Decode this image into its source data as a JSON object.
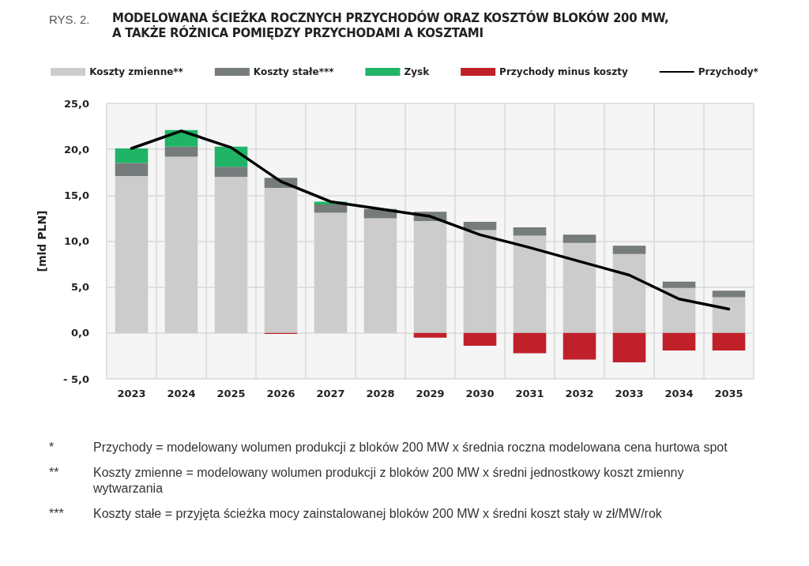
{
  "chart_data": {
    "type": "bar",
    "subtitle": "RYS. 2.",
    "title": "MODELOWANA ŚCIEŻKA ROCZNYCH PRZYCHODÓW ORAZ KOSZTÓW BLOKÓW 200 MW,\nA TAKŻE RÓŻNICA POMIĘDZY PRZYCHODAMI A KOSZTAMI",
    "ylabel": "[mld PLN]",
    "categories": [
      "2023",
      "2024",
      "2025",
      "2026",
      "2027",
      "2028",
      "2029",
      "2030",
      "2031",
      "2032",
      "2033",
      "2034",
      "2035"
    ],
    "stacked": true,
    "series": [
      {
        "name": "Koszty zmienne**",
        "color": "#cccccc",
        "values": [
          17.1,
          19.2,
          17.0,
          15.8,
          13.1,
          12.5,
          12.2,
          11.2,
          10.6,
          9.8,
          8.6,
          4.9,
          3.9
        ]
      },
      {
        "name": "Koszty stałe***",
        "color": "#767b7b",
        "values": [
          1.4,
          1.1,
          1.1,
          1.1,
          0.9,
          1.0,
          1.0,
          0.9,
          0.9,
          0.9,
          0.9,
          0.7,
          0.7
        ]
      },
      {
        "name": "Zysk",
        "color": "#1fb466",
        "values": [
          1.6,
          1.8,
          2.2,
          null,
          0.3,
          null,
          null,
          null,
          null,
          null,
          null,
          null,
          null
        ]
      },
      {
        "name": "Przychody minus koszty",
        "color": "#c0202a",
        "values": [
          null,
          null,
          null,
          -0.1,
          null,
          null,
          -0.5,
          -1.4,
          -2.2,
          -2.9,
          -3.2,
          -1.9,
          -1.9
        ]
      },
      {
        "name": "Przychody*",
        "type": "line",
        "color": "#000000",
        "marker": "none",
        "line_style": "solid",
        "values": [
          20.1,
          22.0,
          20.2,
          16.5,
          14.3,
          13.5,
          12.7,
          10.7,
          9.3,
          7.8,
          6.3,
          3.7,
          2.6
        ]
      }
    ],
    "ylim": [
      -5,
      25
    ],
    "yticks": [
      {
        "value": -5,
        "label": "- 5,0"
      },
      {
        "value": 0,
        "label": "0,0"
      },
      {
        "value": 5,
        "label": "5,0"
      },
      {
        "value": 10,
        "label": "10,0"
      },
      {
        "value": 15,
        "label": "15,0"
      },
      {
        "value": 20,
        "label": "20,0"
      },
      {
        "value": 25,
        "label": "25,0"
      }
    ],
    "grid": true,
    "legend": "top",
    "annotations": [
      "* Przychody = modelowany wolumen produkcji z bloków 200 MW x średnia roczna modelowana cena hurtowa spot",
      "** Koszty zmienne = modelowany wolumen produkcji z bloków 200 MW x średni jednostkowy koszt zmienny wytwarzania",
      "*** Koszty stałe = przyjęta ścieżka mocy zainstalowanej bloków 200 MW x średni koszt stały w zł/MW/rok"
    ]
  }
}
